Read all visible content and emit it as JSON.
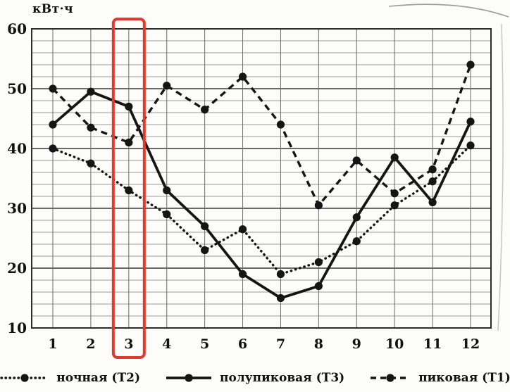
{
  "chart_data": {
    "type": "line",
    "title": "",
    "ylabel": "кВт·ч",
    "xlabel": "",
    "months": [
      "1",
      "2",
      "3",
      "4",
      "5",
      "6",
      "7",
      "8",
      "9",
      "10",
      "11",
      "12"
    ],
    "ylim": [
      10,
      60
    ],
    "y_ticks": [
      60,
      50,
      40,
      30,
      20,
      10
    ],
    "y_minor_step": 2,
    "grid": "on",
    "legend_position": "bottom",
    "line_color": "#151515",
    "series": [
      {
        "name": "ночная (Т2)",
        "style": "dotted",
        "values": [
          40,
          37.5,
          33,
          29,
          23,
          26.5,
          19,
          21,
          24.5,
          30.5,
          34.5,
          40.5
        ]
      },
      {
        "name": "полупиковая (Т3)",
        "style": "solid",
        "values": [
          44,
          49.5,
          47,
          33,
          27,
          19,
          15,
          17,
          28.5,
          38.5,
          31,
          44.5
        ]
      },
      {
        "name": "пиковая (Т1)",
        "style": "dashed",
        "values": [
          50,
          43.5,
          41,
          50.5,
          46.5,
          52,
          44,
          30.5,
          38,
          32.5,
          36.5,
          54
        ]
      }
    ],
    "highlight": {
      "month": 3,
      "color": "#e1392c"
    }
  }
}
